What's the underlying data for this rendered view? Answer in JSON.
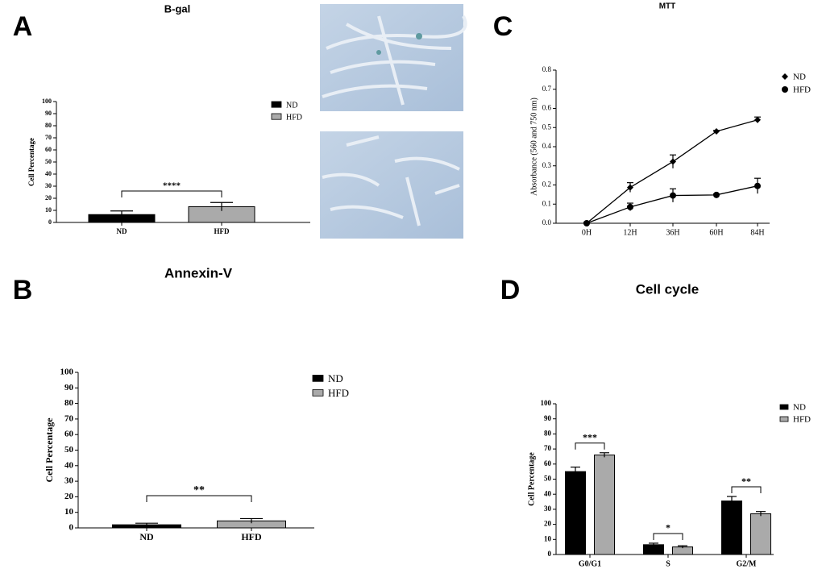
{
  "chart_data": [
    {
      "type": "bar",
      "panel": "A",
      "title": "B-gal",
      "ylabel": "Cell Percentage",
      "categories": [
        "ND",
        "HFD"
      ],
      "values": [
        6.5,
        13
      ],
      "errors": [
        3,
        3.5
      ],
      "colors": [
        "#000000",
        "#aaaaaa"
      ],
      "annotation": "****",
      "ylim": [
        0,
        100
      ],
      "yticks": [
        0,
        10,
        20,
        30,
        40,
        50,
        60,
        70,
        80,
        90,
        100
      ]
    },
    {
      "type": "bar",
      "panel": "B",
      "title": "Annexin-V",
      "ylabel": "Cell Percentage",
      "categories": [
        "ND",
        "HFD"
      ],
      "values": [
        2,
        4.5
      ],
      "errors": [
        1,
        1.5
      ],
      "colors": [
        "#000000",
        "#aaaaaa"
      ],
      "annotation": "**",
      "ylim": [
        0,
        100
      ],
      "yticks": [
        0,
        10,
        20,
        30,
        40,
        50,
        60,
        70,
        80,
        90,
        100
      ]
    },
    {
      "type": "line",
      "panel": "C",
      "title": "MTT",
      "ylabel": "Absorbance (560 and 750 nm)",
      "categories": [
        "0H",
        "12H",
        "36H",
        "60H",
        "84H"
      ],
      "series": [
        {
          "name": "ND",
          "color": "#000000",
          "marker": "diamond",
          "values": [
            0,
            0.187,
            0.322,
            0.48,
            0.54
          ],
          "errors": [
            0.005,
            0.025,
            0.035,
            0.005,
            0.015
          ]
        },
        {
          "name": "HFD",
          "color": "#000000",
          "marker": "circle",
          "values": [
            0,
            0.085,
            0.145,
            0.148,
            0.195
          ],
          "errors": [
            0.005,
            0.02,
            0.035,
            0.005,
            0.04
          ]
        }
      ],
      "ylim": [
        0,
        0.8
      ],
      "yticks": [
        {
          "value": 0,
          "label": "0.0"
        },
        0.1,
        0.2,
        0.3,
        0.4,
        0.5,
        0.6,
        0.7,
        0.8
      ]
    },
    {
      "type": "grouped-bar",
      "panel": "D",
      "title": "Cell cycle",
      "ylabel": "Cell Percentage",
      "categories": [
        "G0/G1",
        "S",
        "G2/M"
      ],
      "series": [
        {
          "name": "ND",
          "color": "#000000",
          "values": [
            55,
            6.5,
            35.5
          ],
          "errors": [
            3,
            1,
            3
          ]
        },
        {
          "name": "HFD",
          "color": "#aaaaaa",
          "values": [
            66,
            5,
            27
          ],
          "errors": [
            1.5,
            0.8,
            1.5
          ]
        }
      ],
      "annotations": [
        "***",
        "*",
        "**"
      ],
      "ylim": [
        0,
        100
      ],
      "yticks": [
        0,
        10,
        20,
        30,
        40,
        50,
        60,
        70,
        80,
        90,
        100
      ]
    }
  ]
}
